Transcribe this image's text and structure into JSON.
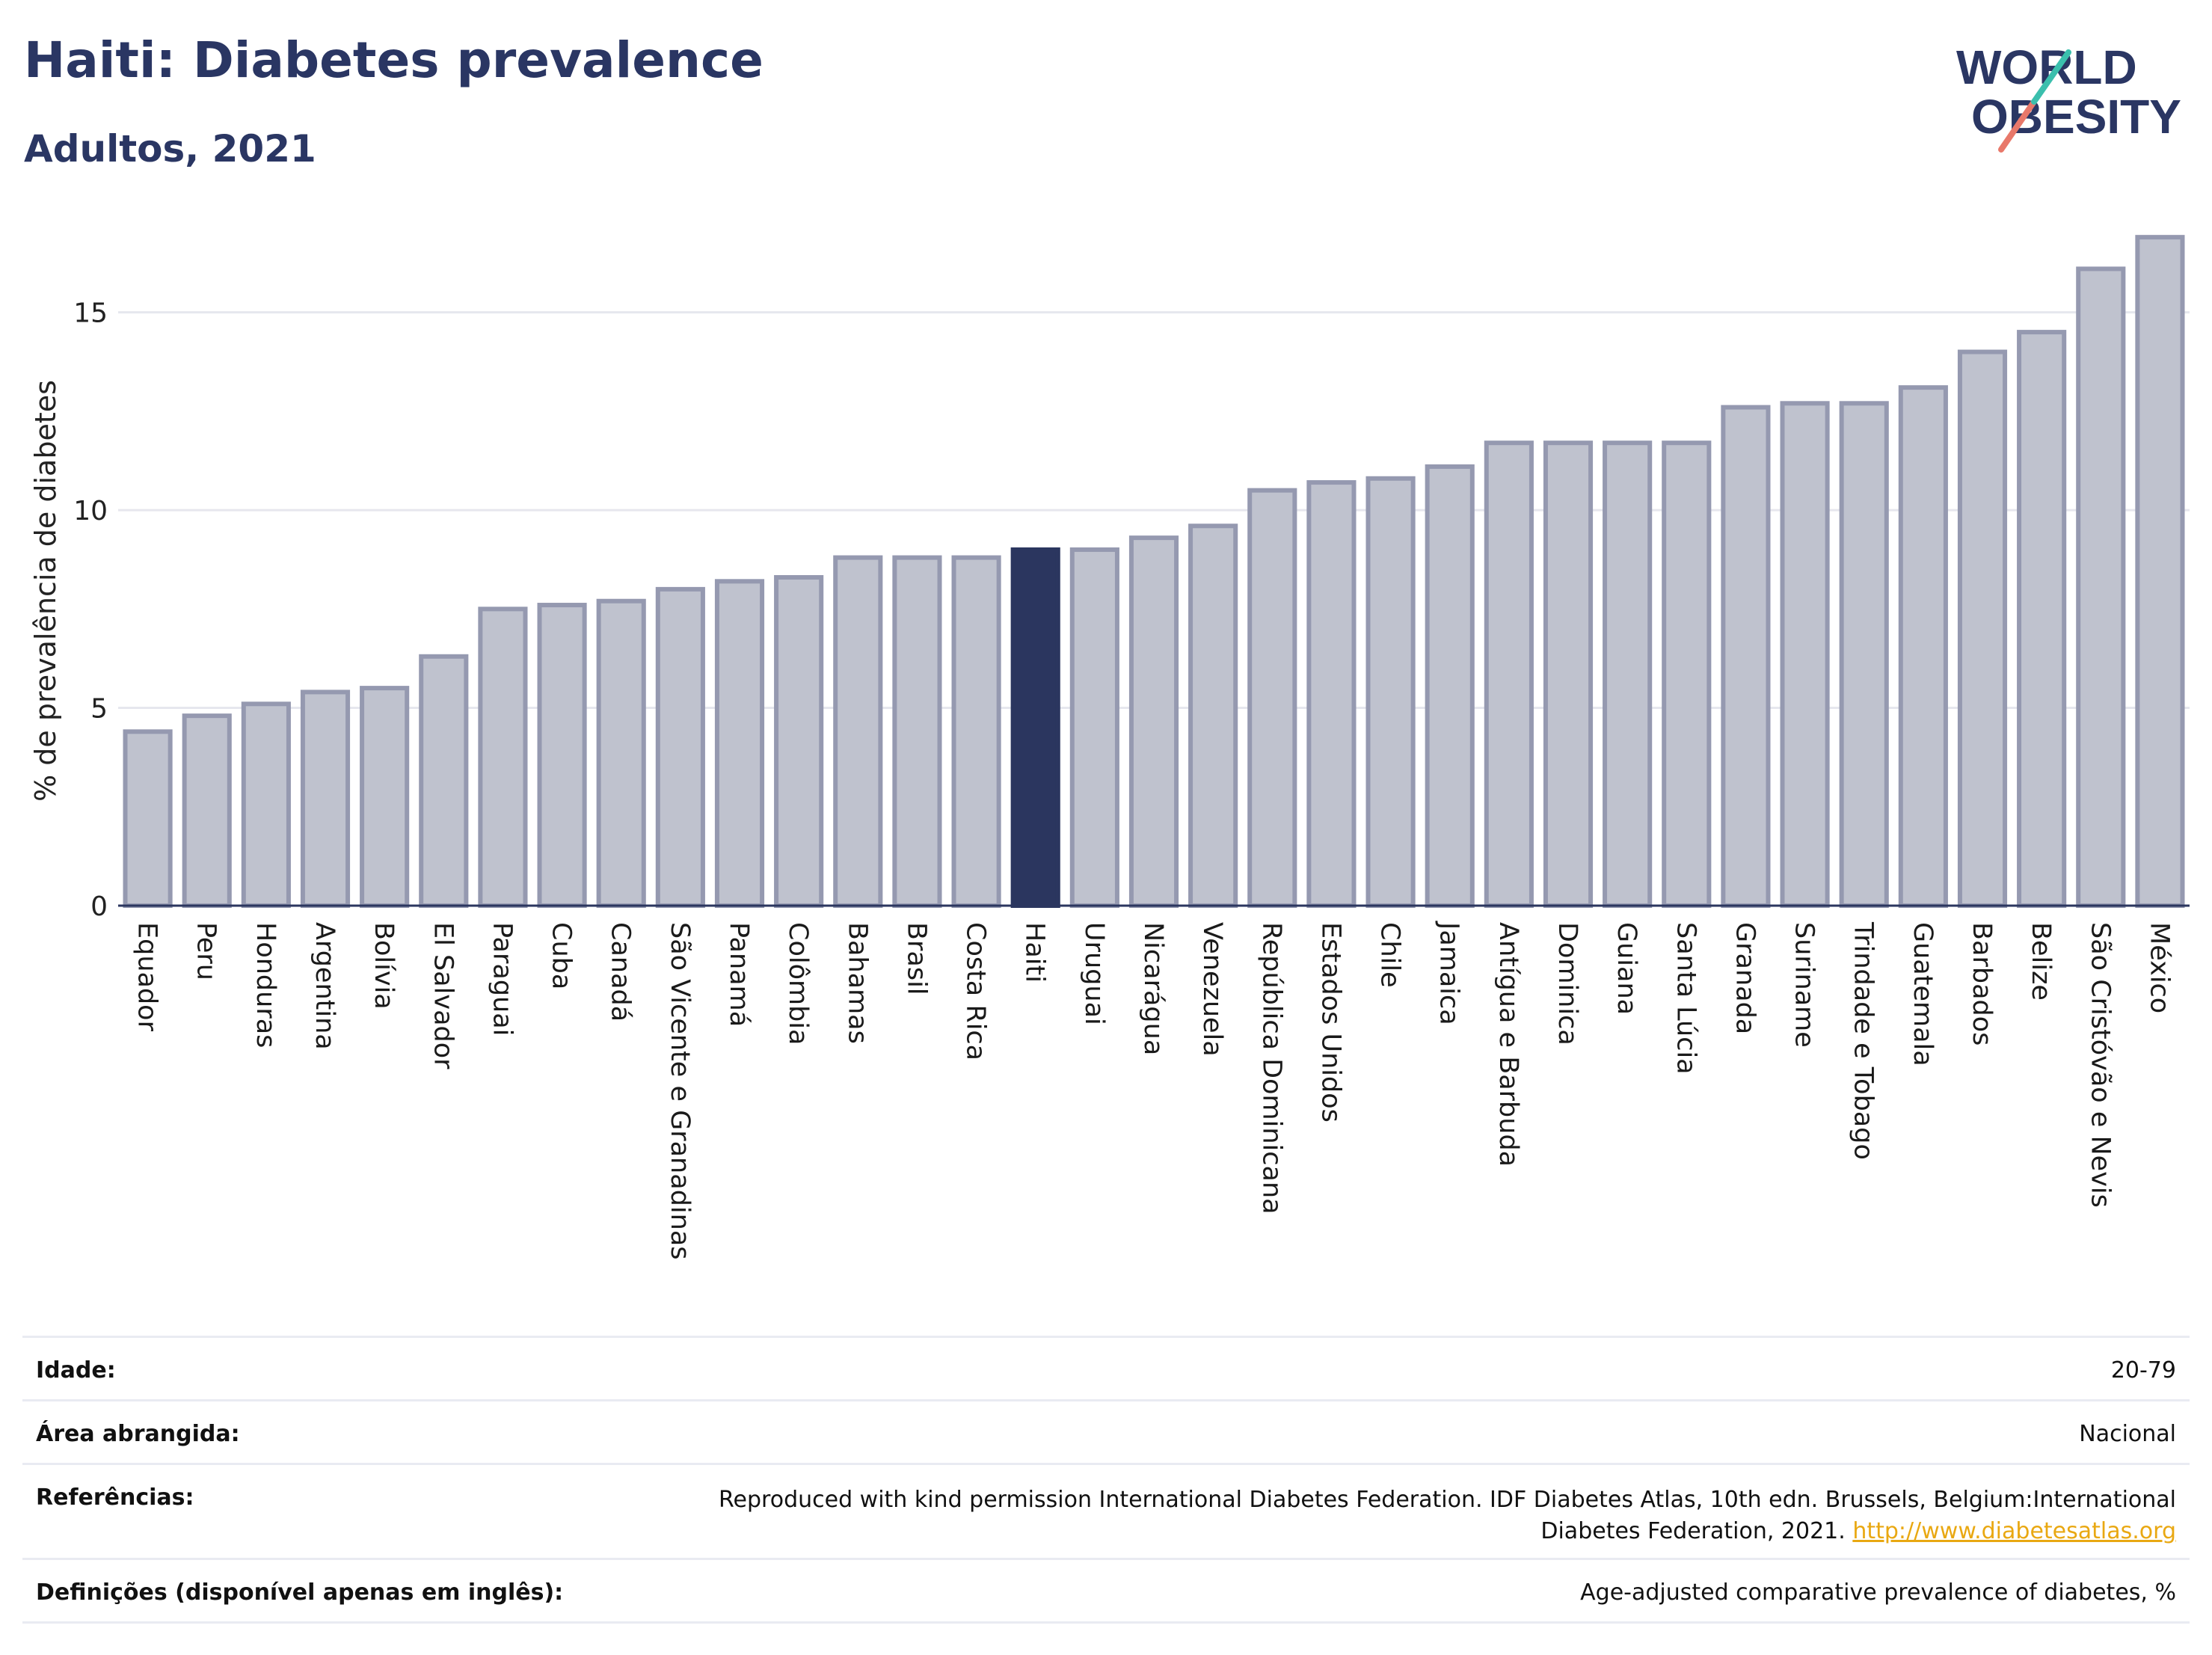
{
  "header": {
    "title": "Haiti: Diabetes prevalence",
    "subtitle": "Adultos, 2021"
  },
  "logo": {
    "line1": "WORLD",
    "line2": "OBESITY"
  },
  "colors": {
    "highlight": "#2b365f",
    "bar_fill": "#bfc2ce",
    "bar_stroke": "#9599b0",
    "title": "#2a3663",
    "link": "#e9a812"
  },
  "chart_data": {
    "type": "bar",
    "ylabel": "% de prevalência de diabetes",
    "ylim": [
      0,
      17.3
    ],
    "yticks": [
      0,
      5,
      10,
      15
    ],
    "grid": true,
    "highlight": "Haiti",
    "categories": [
      "Equador",
      "Peru",
      "Honduras",
      "Argentina",
      "Bolívia",
      "El Salvador",
      "Paraguai",
      "Cuba",
      "Canadá",
      "São Vicente e Granadinas",
      "Panamá",
      "Colômbia",
      "Bahamas",
      "Brasil",
      "Costa Rica",
      "Haiti",
      "Uruguai",
      "Nicarágua",
      "Venezuela",
      "República Dominicana",
      "Estados Unidos",
      "Chile",
      "Jamaica",
      "Antígua e Barbuda",
      "Dominica",
      "Guiana",
      "Santa Lúcia",
      "Granada",
      "Suriname",
      "Trindade e Tobago",
      "Guatemala",
      "Barbados",
      "Belize",
      "São Cristóvão e Nevis",
      "México"
    ],
    "values": [
      4.4,
      4.8,
      5.1,
      5.4,
      5.5,
      6.3,
      7.5,
      7.6,
      7.7,
      8.0,
      8.2,
      8.3,
      8.8,
      8.8,
      8.8,
      9.0,
      9.0,
      9.3,
      9.6,
      10.5,
      10.7,
      10.8,
      11.1,
      11.7,
      11.7,
      11.7,
      11.7,
      12.6,
      12.7,
      12.7,
      13.1,
      14.0,
      14.5,
      16.1,
      16.9
    ]
  },
  "info": {
    "age_label": "Idade:",
    "age_value": "20-79",
    "area_label": "Área abrangida:",
    "area_value": "Nacional",
    "ref_label": "Referências:",
    "ref_line1": "Reproduced with kind permission International Diabetes Federation.  IDF Diabetes Atlas, 10th edn. Brussels, Belgium:International",
    "ref_line2": "Diabetes Federation, 2021.",
    "ref_link": "http://www.diabetesatlas.org",
    "def_label": "Definições (disponível apenas em inglês):",
    "def_value": "Age-adjusted comparative prevalence of diabetes, %"
  }
}
